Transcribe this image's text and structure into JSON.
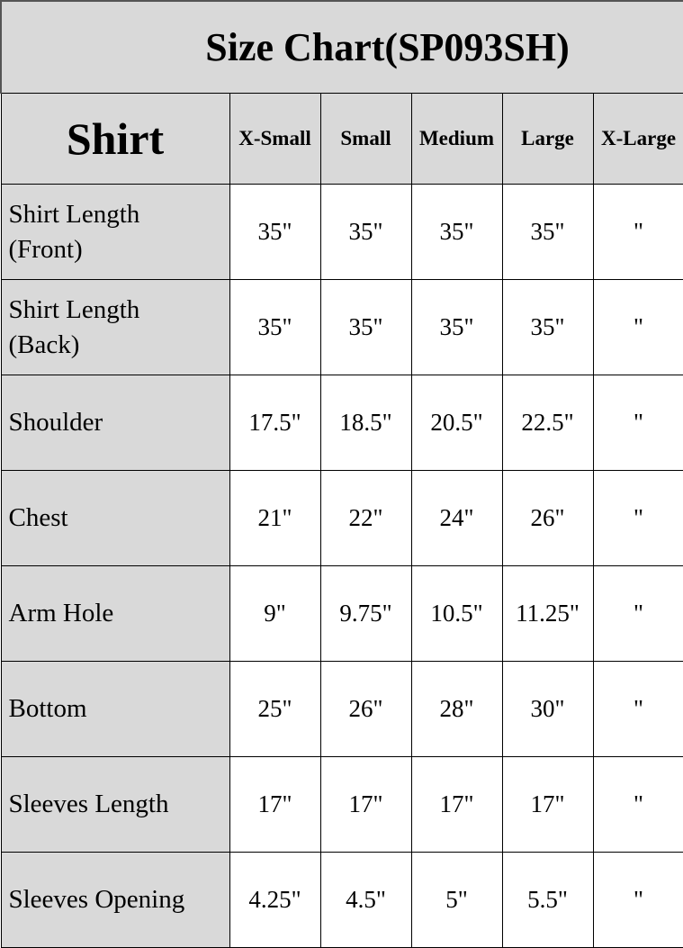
{
  "title": "Size Chart(SP093SH)",
  "header": {
    "category": "Shirt",
    "sizes": [
      "X-Small",
      "Small",
      "Medium",
      "Large",
      "X-Large"
    ]
  },
  "rows": [
    {
      "label_line1": "Shirt Length",
      "label_line2": "(Front)",
      "values": [
        "35\"",
        "35\"",
        "35\"",
        "35\"",
        "\""
      ]
    },
    {
      "label_line1": "Shirt Length",
      "label_line2": "(Back)",
      "values": [
        "35\"",
        "35\"",
        "35\"",
        "35\"",
        "\""
      ]
    },
    {
      "label_line1": "Shoulder",
      "label_line2": "",
      "values": [
        "17.5\"",
        "18.5\"",
        "20.5\"",
        "22.5\"",
        "\""
      ]
    },
    {
      "label_line1": "Chest",
      "label_line2": "",
      "values": [
        "21\"",
        "22\"",
        "24\"",
        "26\"",
        "\""
      ]
    },
    {
      "label_line1": "Arm Hole",
      "label_line2": "",
      "values": [
        "9\"",
        "9.75\"",
        "10.5\"",
        "11.25\"",
        "\""
      ]
    },
    {
      "label_line1": "Bottom",
      "label_line2": "",
      "values": [
        "25\"",
        "26\"",
        "28\"",
        "30\"",
        "\""
      ]
    },
    {
      "label_line1": "Sleeves Length",
      "label_line2": "",
      "values": [
        "17\"",
        "17\"",
        "17\"",
        "17\"",
        "\""
      ]
    },
    {
      "label_line1": "Sleeves Opening",
      "label_line2": "",
      "values": [
        "4.25\"",
        "4.5\"",
        "5\"",
        "5.5\"",
        "\""
      ]
    }
  ],
  "colors": {
    "header_bg": "#d9d9d9",
    "cell_bg": "#ffffff",
    "border": "#000000"
  }
}
